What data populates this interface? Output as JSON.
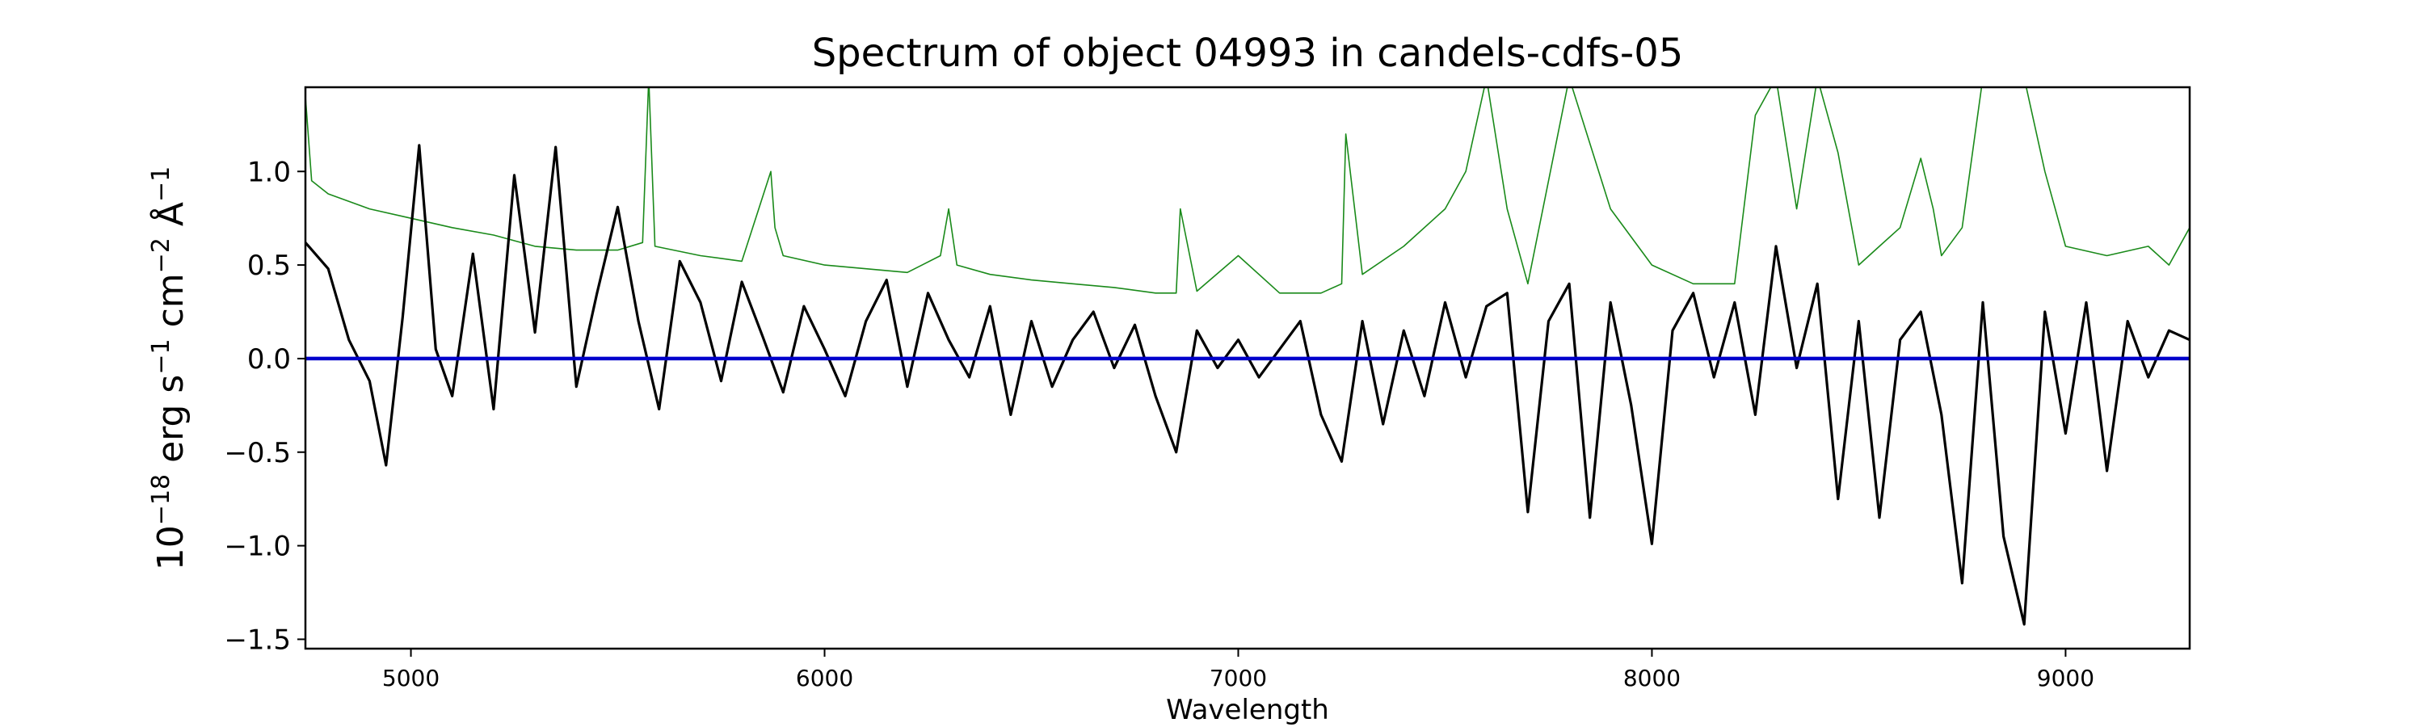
{
  "chart_data": {
    "type": "line",
    "title": "Spectrum of object 04993 in candels-cdfs-05",
    "xlabel": "Wavelength",
    "ylabel": {
      "base": "10",
      "exp": "−18",
      "erg": " erg s",
      "s_exp": "−1",
      "cm": " cm",
      "cm_exp": "−2",
      "ang": " Å",
      "ang_exp": "−1"
    },
    "xlim": [
      4745,
      9300
    ],
    "ylim": [
      -1.55,
      1.45
    ],
    "x_ticks": [
      5000,
      6000,
      7000,
      8000,
      9000
    ],
    "y_ticks": [
      -1.5,
      -1.0,
      -0.5,
      0.0,
      0.5,
      1.0
    ],
    "y_tick_labels": [
      "−1.5",
      "−1.0",
      "−0.5",
      "0.0",
      "0.5",
      "1.0"
    ],
    "grid": false,
    "series": [
      {
        "role": "flux",
        "color": "#000000",
        "x": [
          4745,
          4800,
          4850,
          4900,
          4940,
          4980,
          5020,
          5060,
          5100,
          5150,
          5200,
          5250,
          5300,
          5350,
          5400,
          5450,
          5500,
          5550,
          5600,
          5650,
          5700,
          5750,
          5800,
          5850,
          5900,
          5950,
          6000,
          6050,
          6100,
          6150,
          6200,
          6250,
          6300,
          6350,
          6400,
          6450,
          6500,
          6550,
          6600,
          6650,
          6700,
          6750,
          6800,
          6850,
          6900,
          6950,
          7000,
          7050,
          7100,
          7150,
          7200,
          7250,
          7300,
          7350,
          7400,
          7450,
          7500,
          7550,
          7600,
          7650,
          7700,
          7750,
          7800,
          7850,
          7900,
          7950,
          8000,
          8050,
          8100,
          8150,
          8200,
          8250,
          8300,
          8350,
          8400,
          8450,
          8500,
          8550,
          8600,
          8650,
          8700,
          8750,
          8800,
          8850,
          8900,
          8950,
          9000,
          9050,
          9100,
          9150,
          9200,
          9250,
          9300
        ],
        "y": [
          0.62,
          0.48,
          0.1,
          -0.12,
          -0.57,
          0.22,
          1.14,
          0.05,
          -0.2,
          0.56,
          -0.27,
          0.98,
          0.14,
          1.13,
          -0.15,
          0.35,
          0.81,
          0.2,
          -0.27,
          0.52,
          0.3,
          -0.12,
          0.41,
          0.12,
          -0.18,
          0.28,
          0.05,
          -0.2,
          0.2,
          0.42,
          -0.15,
          0.35,
          0.1,
          -0.1,
          0.28,
          -0.3,
          0.2,
          -0.15,
          0.1,
          0.25,
          -0.05,
          0.18,
          -0.2,
          -0.5,
          0.15,
          -0.05,
          0.1,
          -0.1,
          0.05,
          0.2,
          -0.3,
          -0.55,
          0.2,
          -0.35,
          0.15,
          -0.2,
          0.3,
          -0.1,
          0.28,
          0.35,
          -0.82,
          0.2,
          0.4,
          -0.85,
          0.3,
          -0.25,
          -0.99,
          0.15,
          0.35,
          -0.1,
          0.3,
          -0.3,
          0.6,
          -0.05,
          0.4,
          -0.75,
          0.2,
          -0.85,
          0.1,
          0.25,
          -0.3,
          -1.2,
          0.3,
          -0.95,
          -1.42,
          0.25,
          -0.4,
          0.3,
          -0.6,
          0.2,
          -0.1,
          0.15,
          0.1
        ]
      },
      {
        "role": "error",
        "color": "#1a8a1a",
        "x": [
          4745,
          4760,
          4800,
          4900,
          5000,
          5100,
          5200,
          5300,
          5400,
          5500,
          5560,
          5575,
          5590,
          5700,
          5800,
          5870,
          5880,
          5900,
          6000,
          6100,
          6200,
          6280,
          6300,
          6320,
          6400,
          6500,
          6600,
          6700,
          6800,
          6850,
          6860,
          6900,
          7000,
          7100,
          7200,
          7250,
          7260,
          7300,
          7400,
          7500,
          7550,
          7600,
          7650,
          7700,
          7800,
          7900,
          8000,
          8100,
          8200,
          8250,
          8300,
          8350,
          8400,
          8450,
          8500,
          8550,
          8600,
          8650,
          8680,
          8700,
          8750,
          8800,
          8850,
          8900,
          8950,
          9000,
          9100,
          9200,
          9250,
          9300
        ],
        "y": [
          1.4,
          0.95,
          0.88,
          0.8,
          0.75,
          0.7,
          0.66,
          0.6,
          0.58,
          0.58,
          0.62,
          1.5,
          0.6,
          0.55,
          0.52,
          1.0,
          0.7,
          0.55,
          0.5,
          0.48,
          0.46,
          0.55,
          0.8,
          0.5,
          0.45,
          0.42,
          0.4,
          0.38,
          0.35,
          0.35,
          0.8,
          0.36,
          0.55,
          0.35,
          0.35,
          0.4,
          1.2,
          0.45,
          0.6,
          0.8,
          1.0,
          1.5,
          0.8,
          0.4,
          1.5,
          0.8,
          0.5,
          0.4,
          0.4,
          1.3,
          1.5,
          0.8,
          1.5,
          1.1,
          0.5,
          0.6,
          0.7,
          1.07,
          0.8,
          0.55,
          0.7,
          1.5,
          1.5,
          1.5,
          1.0,
          0.6,
          0.55,
          0.6,
          0.5,
          0.7
        ]
      },
      {
        "role": "zero-baseline",
        "color": "#0000cc",
        "x": [
          4745,
          9300
        ],
        "y": [
          0.0,
          0.0
        ]
      }
    ]
  }
}
